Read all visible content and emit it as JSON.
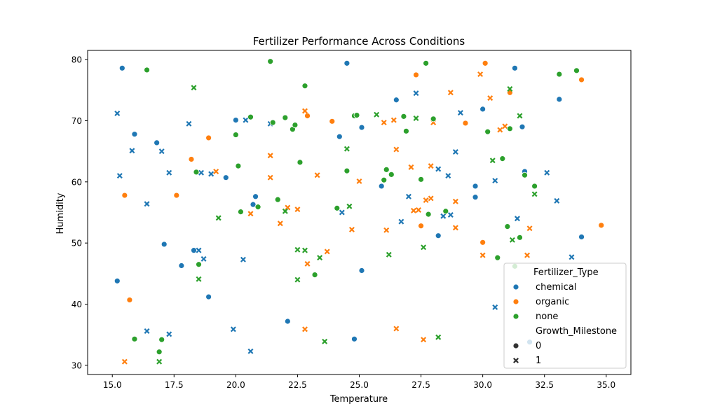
{
  "chart_data": {
    "type": "scatter",
    "title": "Fertilizer Performance Across Conditions",
    "xlabel": "Temperature",
    "ylabel": "Humidity",
    "xlim": [
      14.0,
      36.0
    ],
    "ylim": [
      28.5,
      81.5
    ],
    "xticks": [
      "15.0",
      "17.5",
      "20.0",
      "22.5",
      "25.0",
      "27.5",
      "30.0",
      "32.5",
      "35.0"
    ],
    "yticks": [
      "30",
      "40",
      "50",
      "60",
      "70",
      "80"
    ],
    "grid": false,
    "legend_position": "lower-right",
    "legend": {
      "hue_title": "Fertilizer_Type",
      "style_title": "Growth_Milestone",
      "style_labels": [
        "0",
        "1"
      ]
    },
    "series": [
      {
        "name": "chemical",
        "color": "#1f77b4",
        "points": [
          [
            15.4,
            78.6,
            0
          ],
          [
            15.2,
            43.8,
            0
          ],
          [
            15.9,
            67.8,
            0
          ],
          [
            16.8,
            66.4,
            0
          ],
          [
            17.1,
            49.8,
            0
          ],
          [
            17.8,
            46.3,
            0
          ],
          [
            18.3,
            48.8,
            0
          ],
          [
            18.9,
            41.2,
            0
          ],
          [
            19.6,
            60.7,
            0
          ],
          [
            20.0,
            70.1,
            0
          ],
          [
            20.7,
            56.3,
            0
          ],
          [
            20.8,
            57.6,
            0
          ],
          [
            22.1,
            37.2,
            0
          ],
          [
            24.2,
            67.4,
            0
          ],
          [
            24.5,
            79.4,
            0
          ],
          [
            24.8,
            34.3,
            0
          ],
          [
            25.1,
            68.9,
            0
          ],
          [
            25.1,
            45.5,
            0
          ],
          [
            25.9,
            59.3,
            0
          ],
          [
            26.5,
            73.4,
            0
          ],
          [
            28.2,
            51.2,
            0
          ],
          [
            29.7,
            59.3,
            0
          ],
          [
            29.7,
            57.5,
            0
          ],
          [
            30.0,
            71.9,
            0
          ],
          [
            31.3,
            78.6,
            0
          ],
          [
            31.6,
            69.0,
            0
          ],
          [
            31.7,
            61.7,
            0
          ],
          [
            31.9,
            33.8,
            0
          ],
          [
            33.1,
            73.5,
            0
          ],
          [
            34.0,
            51.0,
            0
          ],
          [
            15.2,
            71.2,
            1
          ],
          [
            15.3,
            61.0,
            1
          ],
          [
            15.8,
            65.1,
            1
          ],
          [
            16.4,
            56.4,
            1
          ],
          [
            16.4,
            35.6,
            1
          ],
          [
            17.0,
            65.0,
            1
          ],
          [
            17.3,
            61.5,
            1
          ],
          [
            17.3,
            35.1,
            1
          ],
          [
            18.1,
            69.5,
            1
          ],
          [
            18.5,
            48.8,
            1
          ],
          [
            18.6,
            61.5,
            1
          ],
          [
            18.7,
            47.4,
            1
          ],
          [
            19.0,
            61.3,
            1
          ],
          [
            19.9,
            35.9,
            1
          ],
          [
            20.3,
            47.3,
            1
          ],
          [
            20.4,
            70.1,
            1
          ],
          [
            20.6,
            32.3,
            1
          ],
          [
            21.4,
            69.5,
            1
          ],
          [
            24.3,
            55.0,
            1
          ],
          [
            26.7,
            53.5,
            1
          ],
          [
            27.0,
            57.6,
            1
          ],
          [
            27.3,
            74.5,
            1
          ],
          [
            28.2,
            62.1,
            1
          ],
          [
            28.4,
            54.4,
            1
          ],
          [
            28.6,
            61.0,
            1
          ],
          [
            28.7,
            54.6,
            1
          ],
          [
            28.9,
            64.9,
            1
          ],
          [
            29.1,
            71.3,
            1
          ],
          [
            30.5,
            60.2,
            1
          ],
          [
            30.5,
            39.5,
            1
          ],
          [
            31.4,
            54.0,
            1
          ],
          [
            32.6,
            61.5,
            1
          ],
          [
            33.0,
            56.9,
            1
          ],
          [
            33.6,
            47.7,
            1
          ]
        ]
      },
      {
        "name": "organic",
        "color": "#ff7f0e",
        "points": [
          [
            15.5,
            57.8,
            0
          ],
          [
            15.7,
            40.7,
            0
          ],
          [
            17.6,
            57.8,
            0
          ],
          [
            18.2,
            63.7,
            0
          ],
          [
            18.9,
            67.2,
            0
          ],
          [
            22.9,
            70.8,
            0
          ],
          [
            23.9,
            69.9,
            0
          ],
          [
            27.3,
            77.5,
            0
          ],
          [
            27.5,
            52.8,
            0
          ],
          [
            29.3,
            69.6,
            0
          ],
          [
            30.0,
            50.1,
            0
          ],
          [
            30.1,
            79.4,
            0
          ],
          [
            31.1,
            74.6,
            0
          ],
          [
            34.0,
            76.7,
            0
          ],
          [
            34.8,
            52.9,
            0
          ],
          [
            15.5,
            30.6,
            1
          ],
          [
            19.2,
            61.7,
            1
          ],
          [
            20.6,
            54.8,
            1
          ],
          [
            21.4,
            64.3,
            1
          ],
          [
            21.4,
            60.7,
            1
          ],
          [
            21.8,
            53.2,
            1
          ],
          [
            22.1,
            55.8,
            1
          ],
          [
            22.5,
            55.5,
            1
          ],
          [
            22.8,
            71.6,
            1
          ],
          [
            22.8,
            35.9,
            1
          ],
          [
            22.9,
            46.6,
            1
          ],
          [
            23.3,
            61.1,
            1
          ],
          [
            23.7,
            48.6,
            1
          ],
          [
            24.7,
            52.2,
            1
          ],
          [
            25.0,
            60.1,
            1
          ],
          [
            26.0,
            69.7,
            1
          ],
          [
            26.1,
            52.1,
            1
          ],
          [
            26.4,
            70.1,
            1
          ],
          [
            26.5,
            65.3,
            1
          ],
          [
            26.5,
            36.0,
            1
          ],
          [
            27.1,
            62.4,
            1
          ],
          [
            27.2,
            55.3,
            1
          ],
          [
            27.4,
            55.4,
            1
          ],
          [
            27.6,
            34.2,
            1
          ],
          [
            27.7,
            57.0,
            1
          ],
          [
            27.9,
            62.6,
            1
          ],
          [
            27.9,
            57.3,
            1
          ],
          [
            28.0,
            69.7,
            1
          ],
          [
            28.7,
            74.6,
            1
          ],
          [
            28.9,
            56.8,
            1
          ],
          [
            28.9,
            52.5,
            1
          ],
          [
            29.9,
            77.6,
            1
          ],
          [
            30.0,
            48.0,
            1
          ],
          [
            30.3,
            73.7,
            1
          ],
          [
            30.7,
            68.5,
            1
          ],
          [
            30.9,
            69.1,
            1
          ],
          [
            31.8,
            48.0,
            1
          ],
          [
            31.9,
            52.4,
            1
          ]
        ]
      },
      {
        "name": "none",
        "color": "#2ca02c",
        "points": [
          [
            15.9,
            34.3,
            0
          ],
          [
            16.4,
            78.3,
            0
          ],
          [
            16.9,
            32.2,
            0
          ],
          [
            17.0,
            34.2,
            0
          ],
          [
            18.4,
            61.6,
            0
          ],
          [
            18.5,
            46.5,
            0
          ],
          [
            20.0,
            67.7,
            0
          ],
          [
            20.1,
            62.6,
            0
          ],
          [
            20.2,
            55.1,
            0
          ],
          [
            20.6,
            70.6,
            0
          ],
          [
            20.9,
            55.9,
            0
          ],
          [
            21.4,
            79.7,
            0
          ],
          [
            21.5,
            69.7,
            0
          ],
          [
            21.7,
            57.1,
            0
          ],
          [
            22.0,
            70.5,
            0
          ],
          [
            22.3,
            68.6,
            0
          ],
          [
            22.4,
            69.3,
            0
          ],
          [
            22.6,
            63.2,
            0
          ],
          [
            22.8,
            75.7,
            0
          ],
          [
            23.2,
            44.8,
            0
          ],
          [
            24.1,
            55.7,
            0
          ],
          [
            24.5,
            61.8,
            0
          ],
          [
            24.8,
            70.8,
            0
          ],
          [
            24.9,
            70.9,
            0
          ],
          [
            26.0,
            60.3,
            0
          ],
          [
            26.1,
            62.0,
            0
          ],
          [
            26.3,
            61.2,
            0
          ],
          [
            26.8,
            70.7,
            0
          ],
          [
            26.9,
            68.3,
            0
          ],
          [
            27.5,
            60.4,
            0
          ],
          [
            27.7,
            79.4,
            0
          ],
          [
            27.8,
            54.7,
            0
          ],
          [
            28.0,
            70.3,
            0
          ],
          [
            28.5,
            55.2,
            0
          ],
          [
            30.2,
            68.2,
            0
          ],
          [
            30.6,
            47.6,
            0
          ],
          [
            30.8,
            63.8,
            0
          ],
          [
            31.0,
            52.7,
            0
          ],
          [
            31.1,
            68.7,
            0
          ],
          [
            31.3,
            46.2,
            0
          ],
          [
            31.5,
            50.9,
            0
          ],
          [
            31.7,
            61.1,
            0
          ],
          [
            32.1,
            59.3,
            0
          ],
          [
            33.1,
            77.6,
            0
          ],
          [
            33.8,
            78.2,
            0
          ],
          [
            16.9,
            30.6,
            1
          ],
          [
            18.3,
            75.4,
            1
          ],
          [
            18.5,
            44.1,
            1
          ],
          [
            19.3,
            54.1,
            1
          ],
          [
            22.0,
            55.2,
            1
          ],
          [
            22.5,
            44.0,
            1
          ],
          [
            22.5,
            48.9,
            1
          ],
          [
            22.8,
            48.8,
            1
          ],
          [
            23.4,
            47.6,
            1
          ],
          [
            23.6,
            33.9,
            1
          ],
          [
            24.5,
            65.4,
            1
          ],
          [
            24.6,
            56.0,
            1
          ],
          [
            25.7,
            71.0,
            1
          ],
          [
            26.2,
            48.1,
            1
          ],
          [
            27.3,
            70.4,
            1
          ],
          [
            27.6,
            49.3,
            1
          ],
          [
            28.2,
            34.6,
            1
          ],
          [
            30.4,
            63.5,
            1
          ],
          [
            31.1,
            75.2,
            1
          ],
          [
            31.2,
            50.5,
            1
          ],
          [
            31.5,
            70.8,
            1
          ],
          [
            32.1,
            58.0,
            1
          ]
        ]
      }
    ]
  }
}
